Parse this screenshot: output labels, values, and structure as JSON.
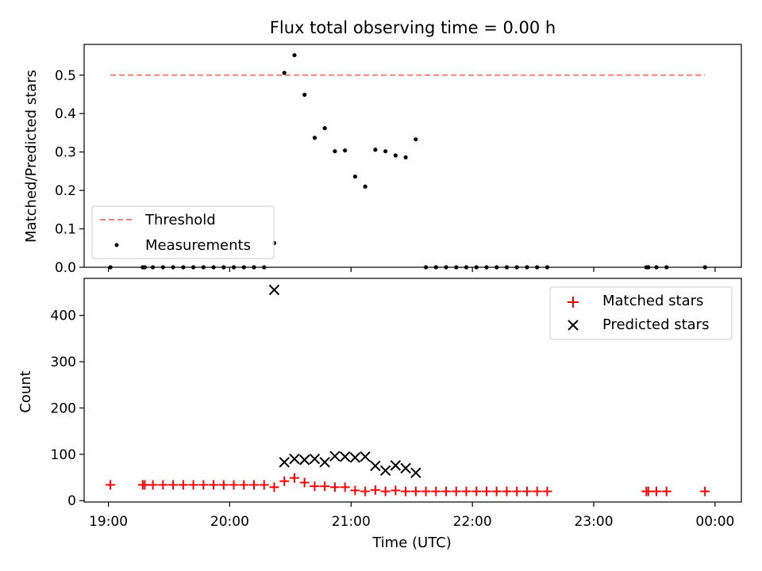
{
  "chart_data": [
    {
      "type": "scatter",
      "title": "Flux total observing time = 0.00 h",
      "xlabel": "",
      "ylabel": "Matched/Predicted stars",
      "xlim": [
        "18:48",
        "24:13"
      ],
      "ylim": [
        0,
        0.58
      ],
      "yticks": [
        0.0,
        0.1,
        0.2,
        0.3,
        0.4,
        0.5
      ],
      "ytick_labels": [
        "0.0",
        "0.1",
        "0.2",
        "0.3",
        "0.4",
        "0.5"
      ],
      "legend_position": "lower-left",
      "threshold": {
        "name": "Threshold",
        "x": [
          "19:01",
          "23:55"
        ],
        "y": 0.5,
        "color": "#f08080",
        "style": "dashed"
      },
      "series": [
        {
          "name": "Measurements",
          "color": "#000000",
          "marker": "dot",
          "points": [
            [
              "19:01",
              0.0
            ],
            [
              "19:17",
              0.0
            ],
            [
              "19:18",
              0.0
            ],
            [
              "19:22",
              0.0
            ],
            [
              "19:27",
              0.0
            ],
            [
              "19:32",
              0.0
            ],
            [
              "19:37",
              0.0
            ],
            [
              "19:42",
              0.0
            ],
            [
              "19:47",
              0.0
            ],
            [
              "19:52",
              0.0
            ],
            [
              "19:57",
              0.0
            ],
            [
              "20:02",
              0.0
            ],
            [
              "20:07",
              0.0
            ],
            [
              "20:12",
              0.0
            ],
            [
              "20:17",
              0.0
            ],
            [
              "20:22",
              0.063
            ],
            [
              "20:27",
              0.506
            ],
            [
              "20:32",
              0.552
            ],
            [
              "20:37",
              0.449
            ],
            [
              "20:42",
              0.337
            ],
            [
              "20:47",
              0.362
            ],
            [
              "20:52",
              0.302
            ],
            [
              "20:57",
              0.304
            ],
            [
              "21:02",
              0.236
            ],
            [
              "21:07",
              0.21
            ],
            [
              "21:12",
              0.306
            ],
            [
              "21:17",
              0.302
            ],
            [
              "21:22",
              0.291
            ],
            [
              "21:27",
              0.286
            ],
            [
              "21:32",
              0.333
            ],
            [
              "21:37",
              0.0
            ],
            [
              "21:42",
              0.0
            ],
            [
              "21:47",
              0.0
            ],
            [
              "21:52",
              0.0
            ],
            [
              "21:57",
              0.0
            ],
            [
              "22:02",
              0.0
            ],
            [
              "22:07",
              0.0
            ],
            [
              "22:12",
              0.0
            ],
            [
              "22:17",
              0.0
            ],
            [
              "22:22",
              0.0
            ],
            [
              "22:27",
              0.0
            ],
            [
              "22:32",
              0.0
            ],
            [
              "22:37",
              0.0
            ],
            [
              "23:26",
              0.0
            ],
            [
              "23:27",
              0.0
            ],
            [
              "23:31",
              0.0
            ],
            [
              "23:36",
              0.0
            ],
            [
              "23:55",
              0.0
            ]
          ]
        }
      ]
    },
    {
      "type": "scatter",
      "title": "",
      "xlabel": "Time (UTC)",
      "ylabel": "Count",
      "xlim": [
        "18:48",
        "24:13"
      ],
      "ylim": [
        -3,
        480
      ],
      "yticks": [
        0,
        100,
        200,
        300,
        400
      ],
      "ytick_labels": [
        "0",
        "100",
        "200",
        "300",
        "400"
      ],
      "xticks": [
        "19:00",
        "20:00",
        "21:00",
        "22:00",
        "23:00",
        "24:00"
      ],
      "xtick_labels": [
        "19:00",
        "20:00",
        "21:00",
        "22:00",
        "23:00",
        "00:00"
      ],
      "legend_position": "upper-right",
      "series": [
        {
          "name": "Matched stars",
          "color": "#ff0000",
          "marker": "plus",
          "points": [
            [
              "19:01",
              34
            ],
            [
              "19:17",
              34
            ],
            [
              "19:18",
              34
            ],
            [
              "19:22",
              34
            ],
            [
              "19:27",
              34
            ],
            [
              "19:32",
              34
            ],
            [
              "19:37",
              34
            ],
            [
              "19:42",
              34
            ],
            [
              "19:47",
              34
            ],
            [
              "19:52",
              34
            ],
            [
              "19:57",
              34
            ],
            [
              "20:02",
              34
            ],
            [
              "20:07",
              34
            ],
            [
              "20:12",
              34
            ],
            [
              "20:17",
              34
            ],
            [
              "20:22",
              29
            ],
            [
              "20:27",
              42
            ],
            [
              "20:32",
              49
            ],
            [
              "20:37",
              39
            ],
            [
              "20:42",
              31
            ],
            [
              "20:47",
              31
            ],
            [
              "20:52",
              29
            ],
            [
              "20:57",
              29
            ],
            [
              "21:02",
              22
            ],
            [
              "21:07",
              20
            ],
            [
              "21:12",
              23
            ],
            [
              "21:17",
              20
            ],
            [
              "21:22",
              22
            ],
            [
              "21:27",
              20
            ],
            [
              "21:32",
              20
            ],
            [
              "21:37",
              20
            ],
            [
              "21:42",
              20
            ],
            [
              "21:47",
              20
            ],
            [
              "21:52",
              20
            ],
            [
              "21:57",
              20
            ],
            [
              "22:02",
              20
            ],
            [
              "22:07",
              20
            ],
            [
              "22:12",
              20
            ],
            [
              "22:17",
              20
            ],
            [
              "22:22",
              20
            ],
            [
              "22:27",
              20
            ],
            [
              "22:32",
              20
            ],
            [
              "22:37",
              20
            ],
            [
              "23:26",
              20
            ],
            [
              "23:27",
              20
            ],
            [
              "23:31",
              20
            ],
            [
              "23:36",
              20
            ],
            [
              "23:55",
              20
            ]
          ]
        },
        {
          "name": "Predicted stars",
          "color": "#000000",
          "marker": "x",
          "points": [
            [
              "20:22",
              455
            ],
            [
              "20:27",
              83
            ],
            [
              "20:32",
              90
            ],
            [
              "20:37",
              88
            ],
            [
              "20:42",
              90
            ],
            [
              "20:47",
              83
            ],
            [
              "20:52",
              96
            ],
            [
              "20:57",
              95
            ],
            [
              "21:02",
              93
            ],
            [
              "21:07",
              95
            ],
            [
              "21:12",
              75
            ],
            [
              "21:17",
              65
            ],
            [
              "21:22",
              76
            ],
            [
              "21:27",
              70
            ],
            [
              "21:32",
              60
            ]
          ]
        }
      ]
    }
  ]
}
